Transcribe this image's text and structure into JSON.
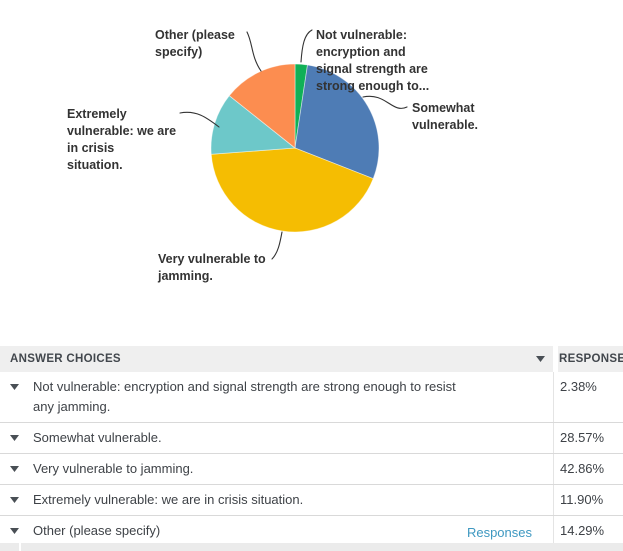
{
  "chart_data": {
    "type": "pie",
    "labels": [
      "Not vulnerable: encryption and signal strength are strong enough to resist any jamming.",
      "Somewhat vulnerable.",
      "Very vulnerable to jamming.",
      "Extremely vulnerable: we are in crisis situation.",
      "Other (please specify)"
    ],
    "values": [
      2.38,
      28.57,
      42.86,
      11.9,
      14.29
    ],
    "colors": [
      "#10B057",
      "#4E7CB5",
      "#F5BD02",
      "#6DC8C9",
      "#FC8D50"
    ],
    "start_angle": "12-oclock",
    "direction": "clockwise",
    "legend_position": "callout-labels",
    "display_labels": [
      "Not vulnerable:\nencryption and\nsignal strength are\nstrong enough to...",
      "Somewhat\nvulnerable.",
      "Very vulnerable to\njamming.",
      "Extremely\nvulnerable: we are\nin crisis\nsituation.",
      "Other (please\nspecify)"
    ]
  },
  "table": {
    "header": {
      "answer_choices": "ANSWER CHOICES",
      "responses": "RESPONSES"
    },
    "rows": [
      {
        "label": "Not vulnerable: encryption and signal strength are strong enough to resist any jamming.",
        "percent": "2.38%"
      },
      {
        "label": "Somewhat vulnerable.",
        "percent": "28.57%"
      },
      {
        "label": "Very vulnerable to jamming.",
        "percent": "42.86%"
      },
      {
        "label": "Extremely vulnerable: we are in crisis situation.",
        "percent": "11.90%"
      },
      {
        "label": "Other (please specify)",
        "percent": "14.29%",
        "link": "Responses"
      }
    ]
  },
  "colors": {
    "link": "#3E98C1",
    "header_bg": "#EFEFEF",
    "text_dark": "#3E4247",
    "label_text": "#333333",
    "border": "#D9D9D9"
  }
}
